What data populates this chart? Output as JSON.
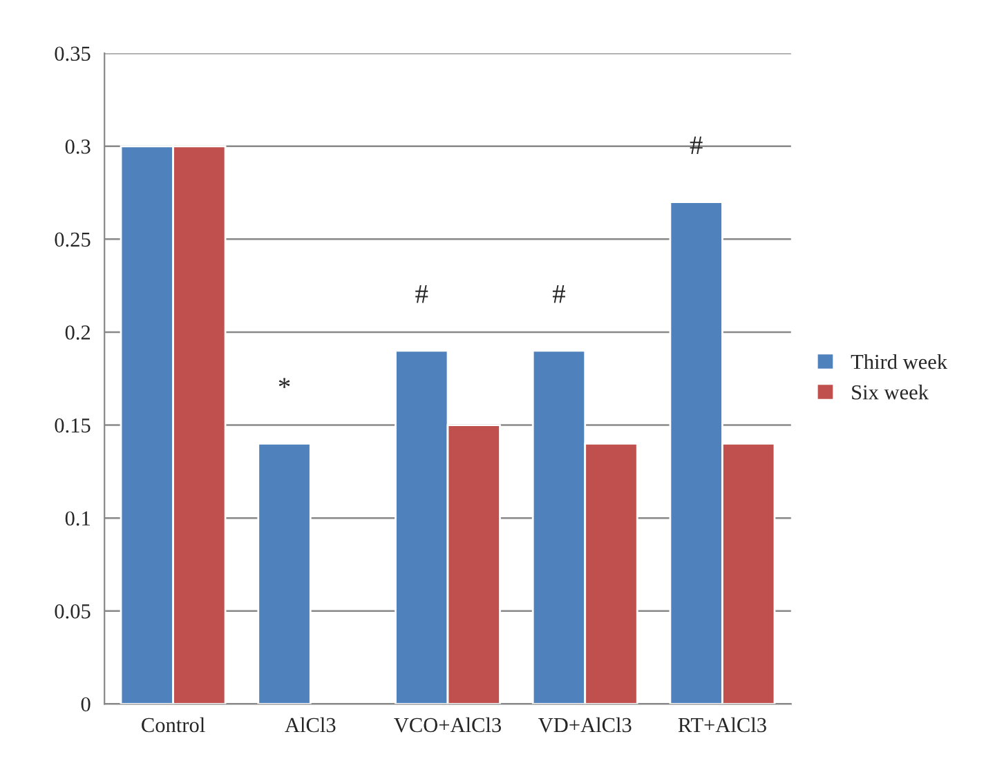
{
  "chart_data": {
    "type": "bar",
    "categories": [
      "Control",
      "AlCl3",
      "VCO+AlCl3",
      "VD+AlCl3",
      "RT+AlCl3"
    ],
    "series": [
      {
        "name": "Third week",
        "color": "#4f81bd",
        "values": [
          0.3,
          0.14,
          0.19,
          0.19,
          0.27
        ]
      },
      {
        "name": "Six week",
        "color": "#c0504d",
        "values": [
          0.3,
          null,
          0.15,
          0.14,
          0.14
        ]
      }
    ],
    "ylim": [
      0,
      0.35
    ],
    "yticks": [
      {
        "value": 0,
        "label": "0"
      },
      0.05,
      0.1,
      0.15,
      0.2,
      0.25,
      0.3,
      0.35
    ],
    "grid": "y",
    "legend": "right",
    "annotations": [
      {
        "text": "*",
        "x": "AlCl3",
        "y": 0.14
      },
      {
        "text": "#",
        "x": "VCO+AlCl3",
        "y": 0.19
      },
      {
        "text": "#",
        "x": "VD+AlCl3",
        "y": 0.19
      },
      {
        "text": "#",
        "x": "RT+AlCl3",
        "y": 0.27
      }
    ]
  }
}
